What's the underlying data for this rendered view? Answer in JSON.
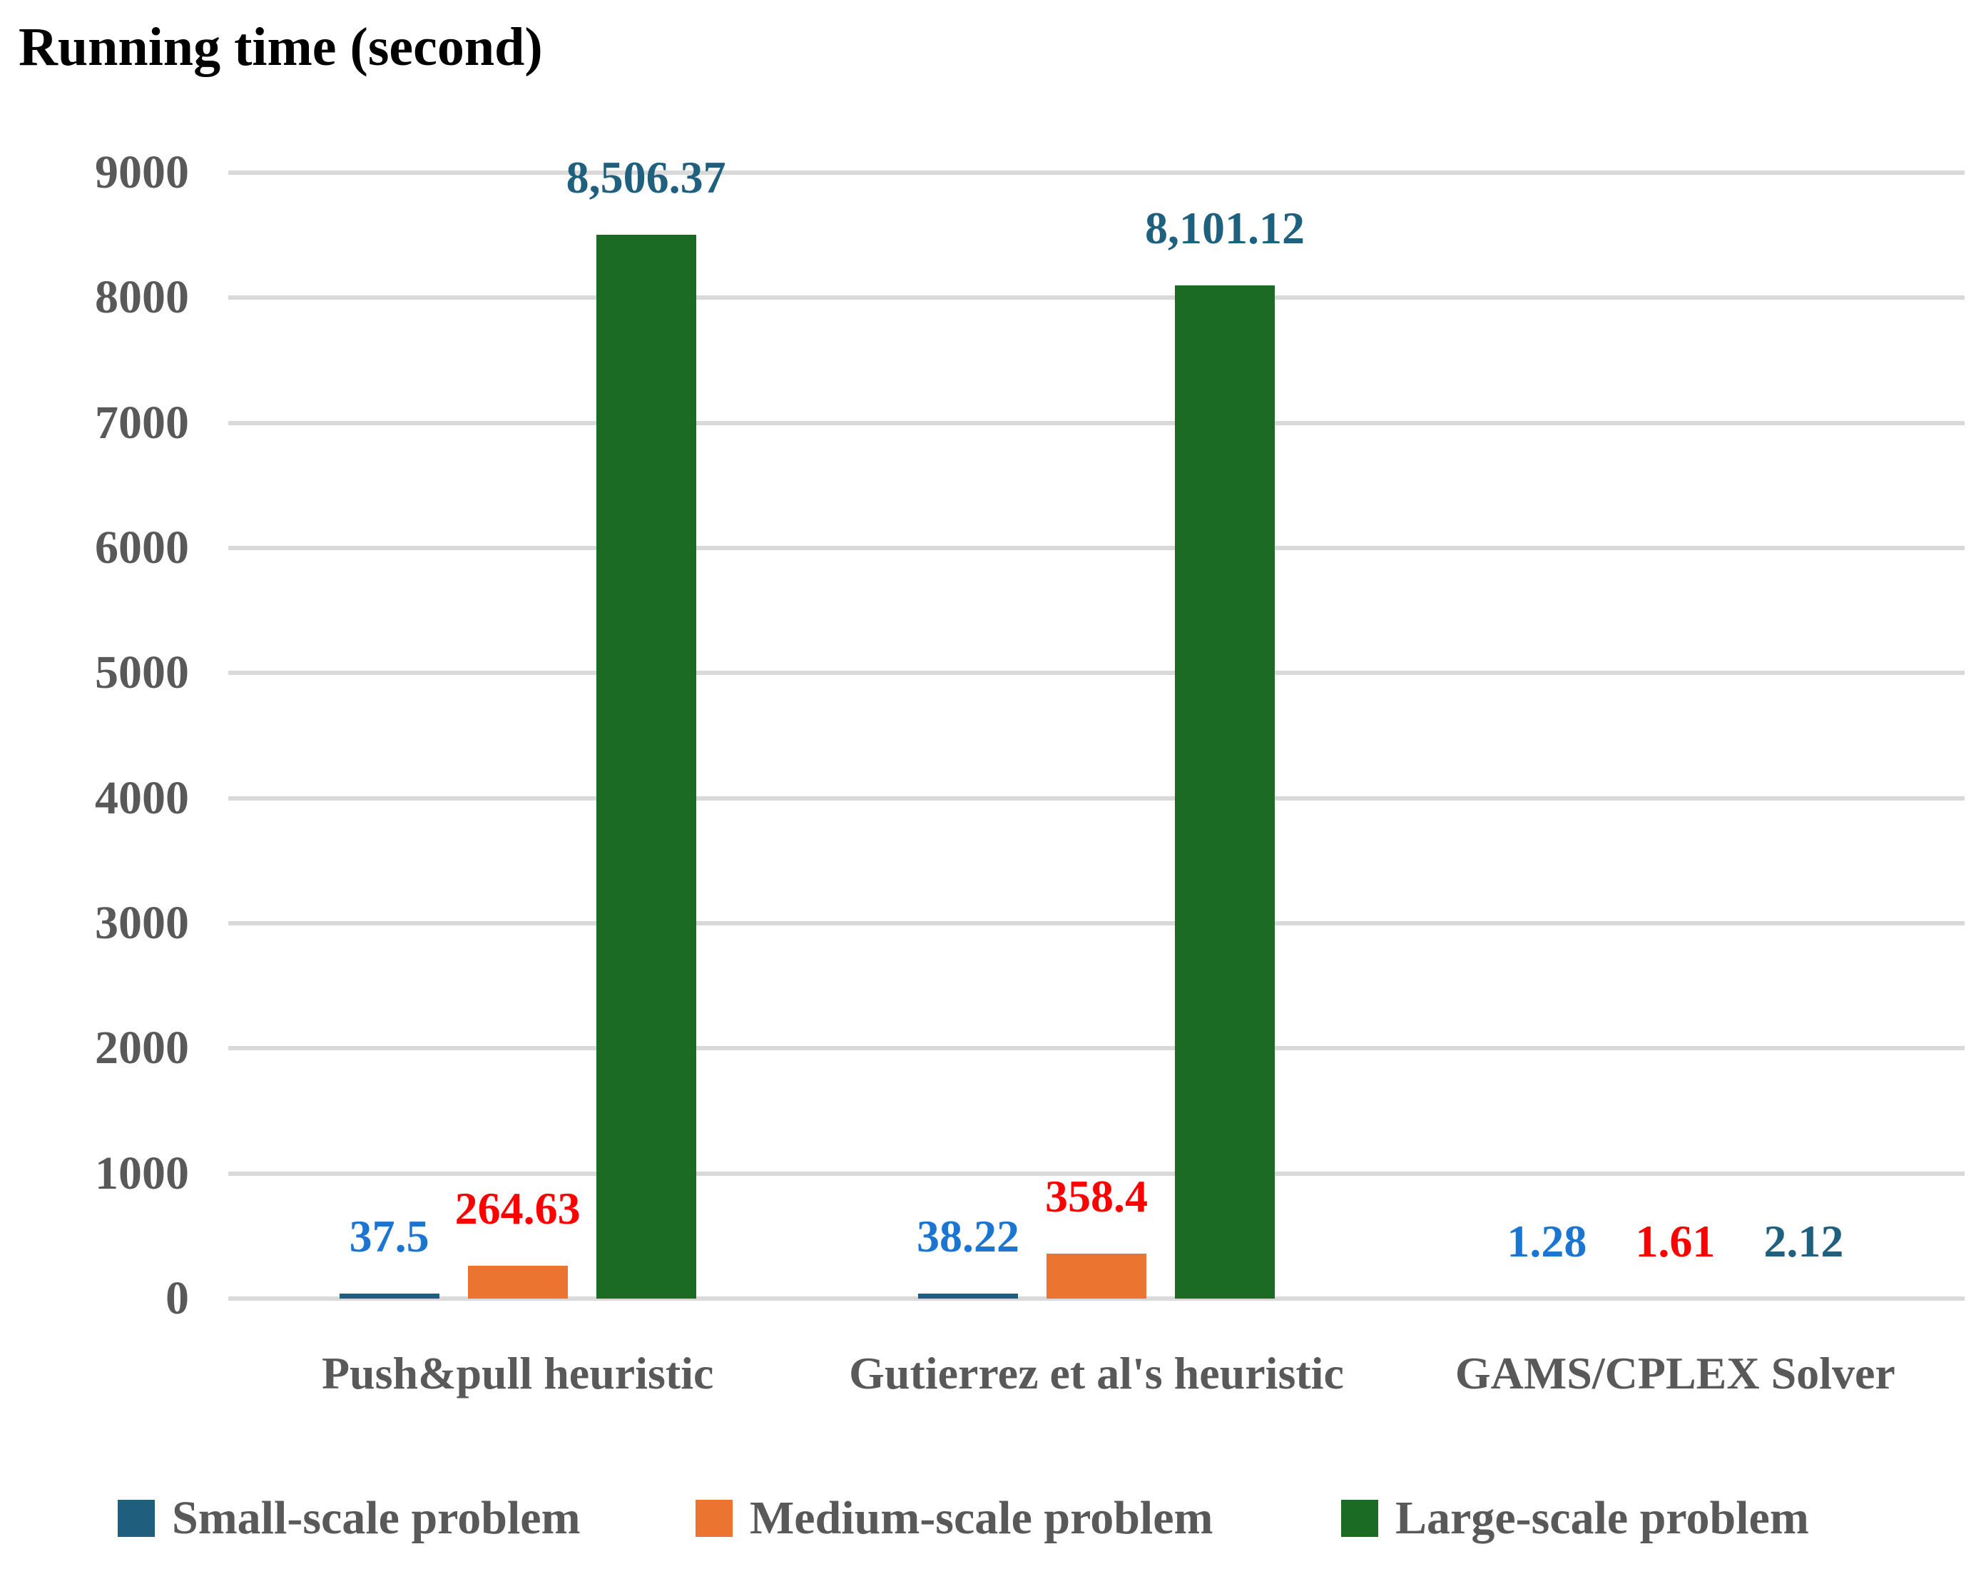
{
  "chart_data": {
    "type": "bar",
    "title": "Running time (second)",
    "categories": [
      "Push&pull heuristic",
      "Gutierrez et al's heuristic",
      "GAMS/CPLEX Solver"
    ],
    "series": [
      {
        "name": "Small-scale problem",
        "color": "#1F5F7D",
        "label_color": "#1B75D1",
        "values": [
          37.5,
          38.22,
          1.28
        ],
        "value_labels": [
          "37.5",
          "38.22",
          "1.28"
        ]
      },
      {
        "name": "Medium-scale problem",
        "color": "#EB7530",
        "label_color": "#FF0000",
        "values": [
          264.63,
          358.4,
          1.61
        ],
        "value_labels": [
          "264.63",
          "358.4",
          "1.61"
        ]
      },
      {
        "name": "Large-scale problem",
        "color": "#1C6B24",
        "label_color": "#20607F",
        "values": [
          8506.37,
          8101.12,
          2.12
        ],
        "value_labels": [
          "8,506.37",
          "8,101.12",
          "2.12"
        ]
      }
    ],
    "ylim": [
      0,
      9000
    ],
    "ytick_labels": [
      "9000",
      "8000",
      "7000",
      "6000",
      "5000",
      "4000",
      "3000",
      "2000",
      "1000",
      "0"
    ],
    "grid": true,
    "legend_position": "bottom",
    "colors": {
      "gridline": "#D9D9D9",
      "axis_text": "#595959",
      "title_text": "#000000",
      "background": "#FFFFFF"
    }
  }
}
